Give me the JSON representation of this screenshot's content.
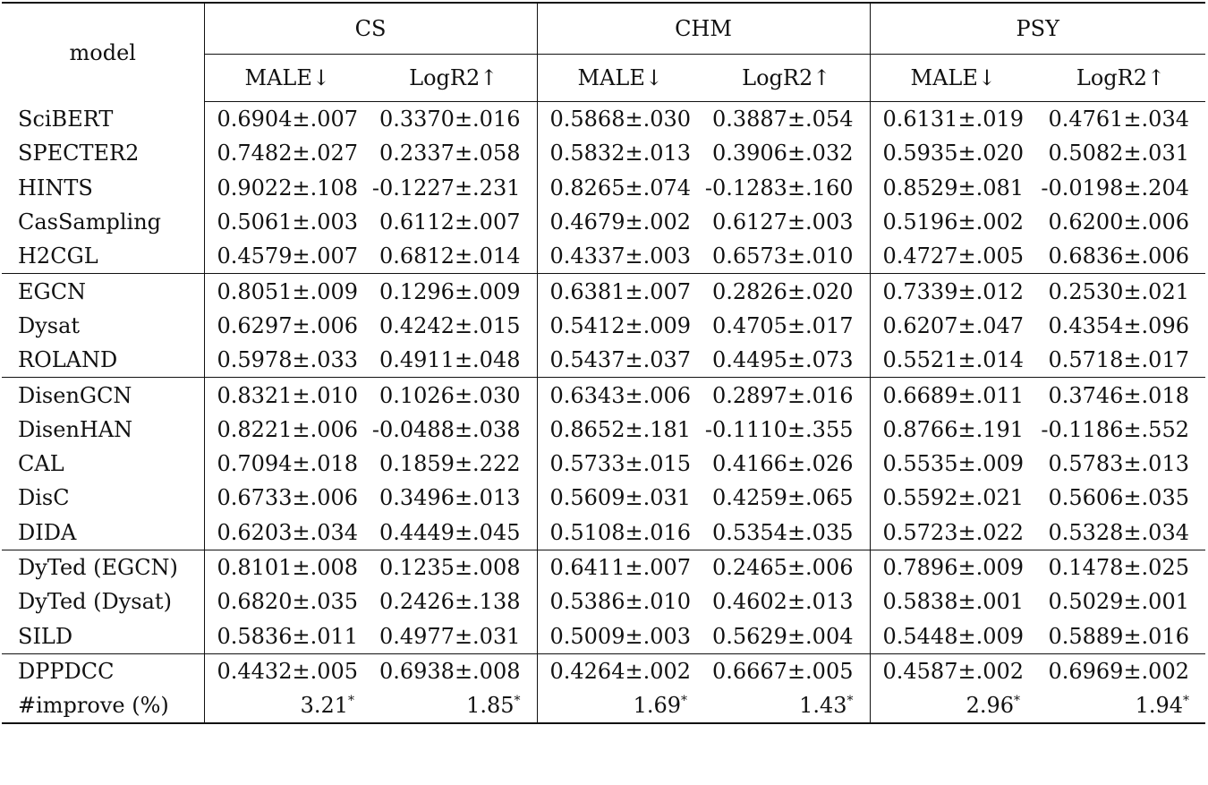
{
  "header": {
    "model_label": "model",
    "groups": [
      "CS",
      "CHM",
      "PSY"
    ],
    "metrics": [
      "MALE↓",
      "LogR2↑"
    ]
  },
  "row_groups": [
    {
      "rows": [
        {
          "model": "SciBERT",
          "values": [
            "0.6904±.007",
            "0.3370±.016",
            "0.5868±.030",
            "0.3887±.054",
            "0.6131±.019",
            "0.4761±.034"
          ]
        },
        {
          "model": "SPECTER2",
          "values": [
            "0.7482±.027",
            "0.2337±.058",
            "0.5832±.013",
            "0.3906±.032",
            "0.5935±.020",
            "0.5082±.031"
          ]
        },
        {
          "model": "HINTS",
          "values": [
            "0.9022±.108",
            "-0.1227±.231",
            "0.8265±.074",
            "-0.1283±.160",
            "0.8529±.081",
            "-0.0198±.204"
          ]
        },
        {
          "model": "CasSampling",
          "values": [
            "0.5061±.003",
            "0.6112±.007",
            "0.4679±.002",
            "0.6127±.003",
            "0.5196±.002",
            "0.6200±.006"
          ]
        },
        {
          "model": "H2CGL",
          "values": [
            "0.4579±.007",
            "0.6812±.014",
            "0.4337±.003",
            "0.6573±.010",
            "0.4727±.005",
            "0.6836±.006"
          ]
        }
      ]
    },
    {
      "rows": [
        {
          "model": "EGCN",
          "values": [
            "0.8051±.009",
            "0.1296±.009",
            "0.6381±.007",
            "0.2826±.020",
            "0.7339±.012",
            "0.2530±.021"
          ]
        },
        {
          "model": "Dysat",
          "values": [
            "0.6297±.006",
            "0.4242±.015",
            "0.5412±.009",
            "0.4705±.017",
            "0.6207±.047",
            "0.4354±.096"
          ]
        },
        {
          "model": "ROLAND",
          "values": [
            "0.5978±.033",
            "0.4911±.048",
            "0.5437±.037",
            "0.4495±.073",
            "0.5521±.014",
            "0.5718±.017"
          ]
        }
      ]
    },
    {
      "rows": [
        {
          "model": "DisenGCN",
          "values": [
            "0.8321±.010",
            "0.1026±.030",
            "0.6343±.006",
            "0.2897±.016",
            "0.6689±.011",
            "0.3746±.018"
          ]
        },
        {
          "model": "DisenHAN",
          "values": [
            "0.8221±.006",
            "-0.0488±.038",
            "0.8652±.181",
            "-0.1110±.355",
            "0.8766±.191",
            "-0.1186±.552"
          ]
        },
        {
          "model": "CAL",
          "values": [
            "0.7094±.018",
            "0.1859±.222",
            "0.5733±.015",
            "0.4166±.026",
            "0.5535±.009",
            "0.5783±.013"
          ]
        },
        {
          "model": "DisC",
          "values": [
            "0.6733±.006",
            "0.3496±.013",
            "0.5609±.031",
            "0.4259±.065",
            "0.5592±.021",
            "0.5606±.035"
          ]
        },
        {
          "model": "DIDA",
          "values": [
            "0.6203±.034",
            "0.4449±.045",
            "0.5108±.016",
            "0.5354±.035",
            "0.5723±.022",
            "0.5328±.034"
          ]
        }
      ]
    },
    {
      "rows": [
        {
          "model": "DyTed (EGCN)",
          "values": [
            "0.8101±.008",
            "0.1235±.008",
            "0.6411±.007",
            "0.2465±.006",
            "0.7896±.009",
            "0.1478±.025"
          ]
        },
        {
          "model": "DyTed (Dysat)",
          "values": [
            "0.6820±.035",
            "0.2426±.138",
            "0.5386±.010",
            "0.4602±.013",
            "0.5838±.001",
            "0.5029±.001"
          ]
        },
        {
          "model": "SILD",
          "values": [
            "0.5836±.011",
            "0.4977±.031",
            "0.5009±.003",
            "0.5629±.004",
            "0.5448±.009",
            "0.5889±.016"
          ]
        }
      ]
    },
    {
      "rows": [
        {
          "model": "DPPDCC",
          "values": [
            "0.4432±.005",
            "0.6938±.008",
            "0.4264±.002",
            "0.6667±.005",
            "0.4587±.002",
            "0.6969±.002"
          ]
        }
      ]
    }
  ],
  "improve_row": {
    "model": "#improve (%)",
    "values": [
      "3.21",
      "1.85",
      "1.69",
      "1.43",
      "2.96",
      "1.94"
    ],
    "marker": "*"
  }
}
